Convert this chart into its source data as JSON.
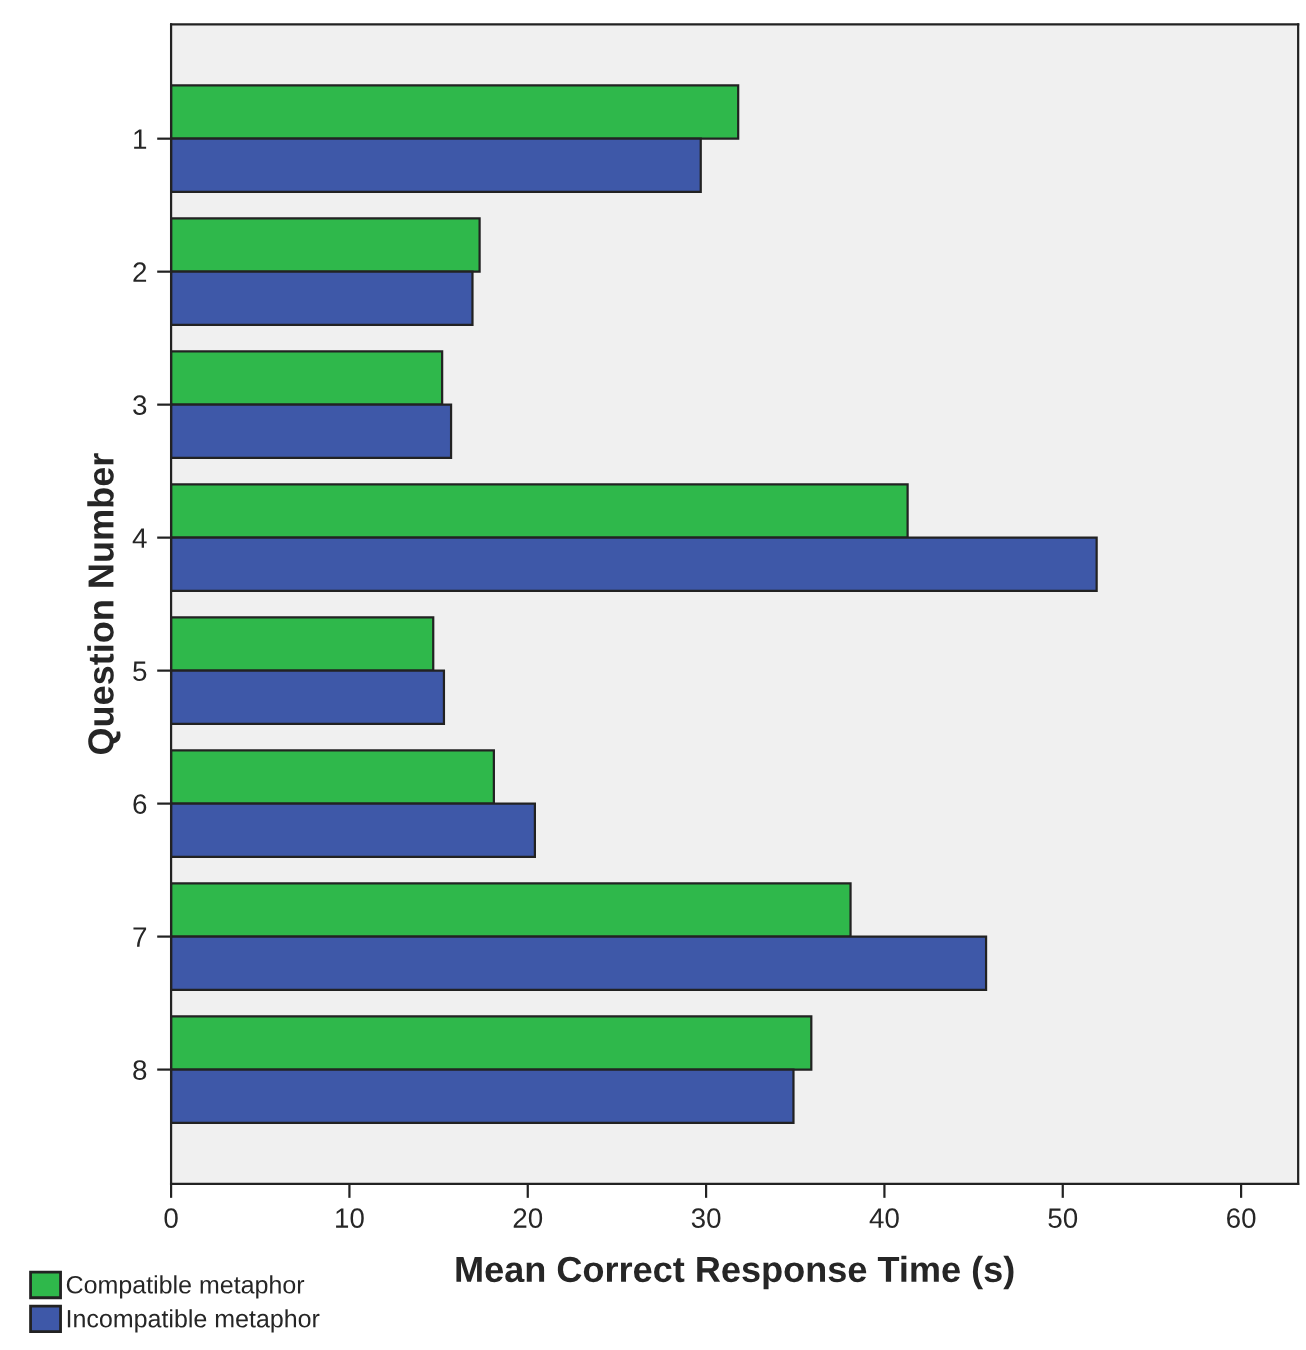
{
  "chart_data": {
    "type": "bar",
    "orientation": "horizontal",
    "xlabel": "Mean Correct Response Time (s)",
    "ylabel": "Question Number",
    "categories": [
      "1",
      "2",
      "3",
      "4",
      "5",
      "6",
      "7",
      "8"
    ],
    "series": [
      {
        "name": "Compatible metaphor",
        "color": "#2fb84b",
        "values": [
          31.8,
          17.3,
          15.2,
          41.3,
          14.7,
          18.1,
          38.1,
          35.9
        ]
      },
      {
        "name": "Incompatible metaphor",
        "color": "#3e58a8",
        "values": [
          29.7,
          16.9,
          15.7,
          51.9,
          15.3,
          20.4,
          45.7,
          34.9
        ]
      }
    ],
    "xlim": [
      0,
      63.2
    ],
    "xticks": [
      0,
      10,
      20,
      30,
      40,
      50,
      60
    ],
    "grid": false,
    "legend": "bottom left"
  }
}
